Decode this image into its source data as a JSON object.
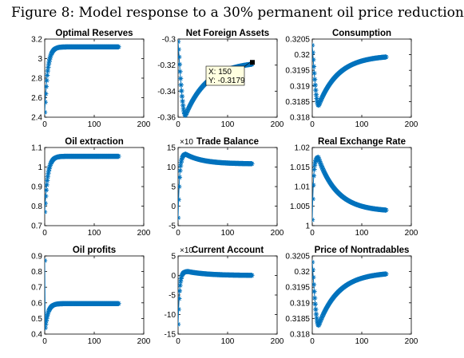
{
  "figure_caption": "Figure 8: Model response to a 30% permanent oil price reduction",
  "colors": {
    "series": "#0072BD",
    "axis": "#000000",
    "background": "#ffffff",
    "tooltip_bg": "#ffffe0"
  },
  "chart_data": [
    {
      "type": "scatter",
      "title": "Optimal Reserves",
      "xlim": [
        0,
        200
      ],
      "xticks": [
        "0",
        "100",
        "200"
      ],
      "ylim": [
        2.4,
        3.2
      ],
      "yticks": [
        "2.4",
        "2.6",
        "2.8",
        "3",
        "3.2"
      ],
      "ytick_values": [
        2.4,
        2.6,
        2.8,
        3.0,
        3.2
      ],
      "curve": {
        "type": "rise",
        "start": 2.45,
        "end": 3.12,
        "tau": 6
      },
      "series": [
        {
          "name": "",
          "n_points": 150
        }
      ]
    },
    {
      "type": "scatter",
      "title": "Net Foreign Assets",
      "xlim": [
        0,
        200
      ],
      "xticks": [
        "0",
        "100",
        "200"
      ],
      "ylim": [
        -0.36,
        -0.3
      ],
      "yticks": [
        "-0.36",
        "-0.34",
        "-0.32",
        "-0.3"
      ],
      "ytick_values": [
        -0.36,
        -0.34,
        -0.32,
        -0.3
      ],
      "curve": {
        "type": "dip",
        "start": -0.302,
        "end": -0.3172,
        "min": -0.3585,
        "tmin": 15,
        "tau_rec": 45
      },
      "series": [
        {
          "name": "",
          "n_points": 150
        }
      ],
      "datatip": {
        "x_label": "X: 150",
        "y_label": "Y: -0.3179",
        "x": 150,
        "y": -0.3179
      }
    },
    {
      "type": "scatter",
      "title": "Consumption",
      "xlim": [
        0,
        200
      ],
      "xticks": [
        "0",
        "100",
        "200"
      ],
      "ylim": [
        0.318,
        0.3205
      ],
      "yticks": [
        "0.318",
        "0.3185",
        "0.319",
        "0.3195",
        "0.32",
        "0.3205"
      ],
      "ytick_values": [
        0.318,
        0.3185,
        0.319,
        0.3195,
        0.32,
        0.3205
      ],
      "curve": {
        "type": "dip",
        "start": 0.3203,
        "end": 0.31998,
        "min": 0.31838,
        "tmin": 13,
        "tau_rec": 40
      },
      "series": [
        {
          "name": "",
          "n_points": 150
        }
      ]
    },
    {
      "type": "scatter",
      "title": "Oil extraction",
      "xlim": [
        0,
        200
      ],
      "xticks": [
        "0",
        "100",
        "200"
      ],
      "ylim": [
        0.7,
        1.1
      ],
      "yticks": [
        "0.7",
        "0.8",
        "0.9",
        "1",
        "1.1"
      ],
      "ytick_values": [
        0.7,
        0.8,
        0.9,
        1.0,
        1.1
      ],
      "curve": {
        "type": "rise",
        "start": 0.77,
        "end": 1.055,
        "tau": 6
      },
      "series": [
        {
          "name": "",
          "n_points": 150
        }
      ]
    },
    {
      "type": "scatter",
      "title": "Trade Balance",
      "xlim": [
        0,
        200
      ],
      "xticks": [
        "0",
        "100",
        "200"
      ],
      "ylim": [
        -5,
        15
      ],
      "yticks": [
        "-5",
        "0",
        "5",
        "10",
        "15"
      ],
      "ytick_values": [
        -5,
        0,
        5,
        10,
        15
      ],
      "y_exponent_label": "×10",
      "curve": {
        "type": "overshoot",
        "start": -3,
        "peak": 13.3,
        "tpeak": 15,
        "end": 10.8,
        "tau_rise": 3,
        "tau_dec": 35
      },
      "series": [
        {
          "name": "",
          "n_points": 150
        }
      ]
    },
    {
      "type": "scatter",
      "title": "Real Exchange Rate",
      "xlim": [
        0,
        200
      ],
      "xticks": [
        "0",
        "100",
        "200"
      ],
      "ylim": [
        1,
        1.02
      ],
      "yticks": [
        "1",
        "1.005",
        "1.01",
        "1.015",
        "1.02"
      ],
      "ytick_values": [
        1.0,
        1.005,
        1.01,
        1.015,
        1.02
      ],
      "curve": {
        "type": "overshoot",
        "start": 1.0015,
        "peak": 1.0175,
        "tpeak": 12,
        "end": 1.0036,
        "tau_rise": 2.5,
        "tau_dec": 38
      },
      "series": [
        {
          "name": "",
          "n_points": 150
        }
      ]
    },
    {
      "type": "scatter",
      "title": "Oil profits",
      "xlim": [
        0,
        200
      ],
      "xticks": [
        "0",
        "100",
        "200"
      ],
      "ylim": [
        0.4,
        0.9
      ],
      "yticks": [
        "0.4",
        "0.5",
        "0.6",
        "0.7",
        "0.8",
        "0.9"
      ],
      "ytick_values": [
        0.4,
        0.5,
        0.6,
        0.7,
        0.8,
        0.9
      ],
      "curve": {
        "type": "jump",
        "first": 0.87,
        "start": 0.44,
        "end": 0.595,
        "tau": 6
      },
      "series": [
        {
          "name": "",
          "n_points": 150
        }
      ]
    },
    {
      "type": "scatter",
      "title": "Current Account",
      "xlim": [
        0,
        200
      ],
      "xticks": [
        "0",
        "100",
        "200"
      ],
      "ylim": [
        -15,
        5
      ],
      "yticks": [
        "-15",
        "-10",
        "-5",
        "0",
        "5"
      ],
      "ytick_values": [
        -15,
        -10,
        -5,
        0,
        5
      ],
      "y_exponent_label": "×10",
      "curve": {
        "type": "overshoot",
        "start": -12.5,
        "peak": 1.0,
        "tpeak": 20,
        "end": 0,
        "tau_rise": 3,
        "tau_dec": 40
      },
      "series": [
        {
          "name": "",
          "n_points": 150
        }
      ]
    },
    {
      "type": "scatter",
      "title": "Price of Nontradables",
      "xlim": [
        0,
        200
      ],
      "xticks": [
        "0",
        "100",
        "200"
      ],
      "ylim": [
        0.318,
        0.3205
      ],
      "yticks": [
        "0.318",
        "0.3185",
        "0.319",
        "0.3195",
        "0.32",
        "0.3205"
      ],
      "ytick_values": [
        0.318,
        0.3185,
        0.319,
        0.3195,
        0.32,
        0.3205
      ],
      "curve": {
        "type": "dip",
        "start": 0.3203,
        "end": 0.31998,
        "min": 0.31828,
        "tmin": 13,
        "tau_rec": 40
      },
      "series": [
        {
          "name": "",
          "n_points": 150
        }
      ]
    }
  ]
}
